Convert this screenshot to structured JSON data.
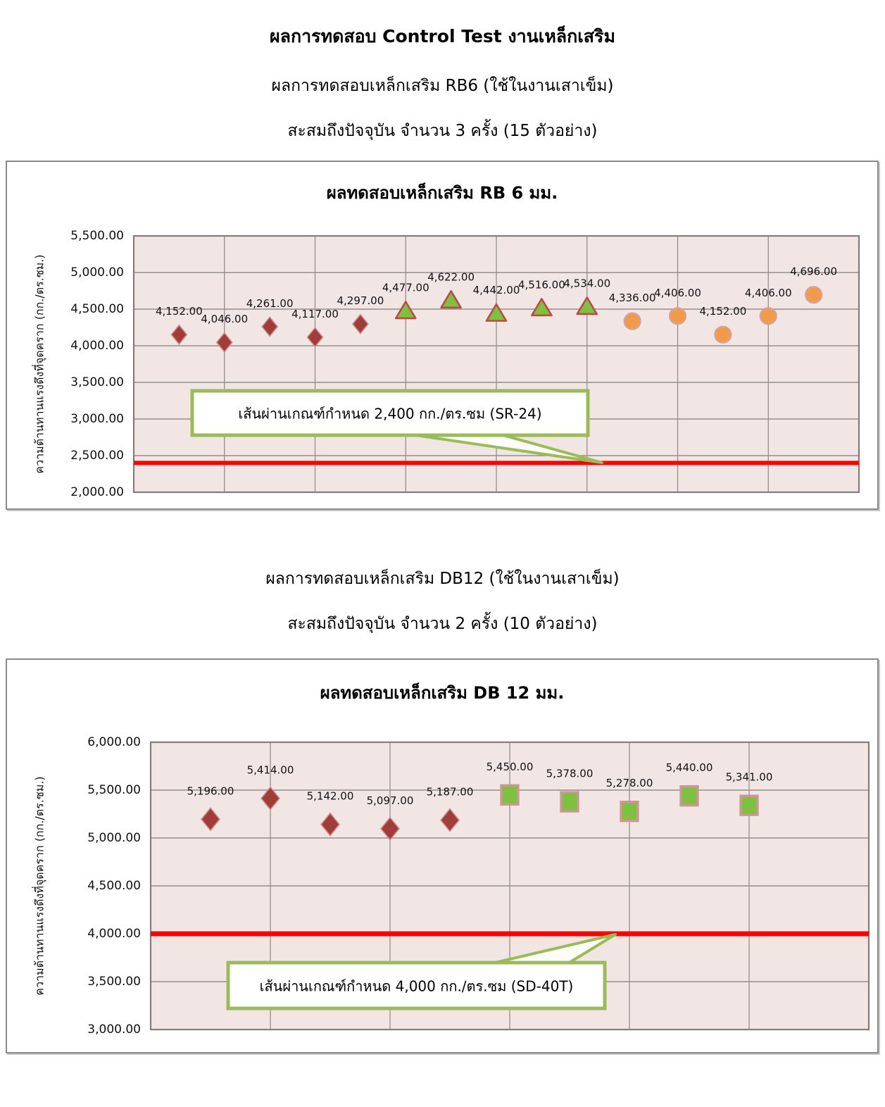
{
  "headers": {
    "main_title": "ผลการทดสอบ Control Test งานเหล็กเสริม",
    "rb6_subtitle": "ผลการทดสอบเหล็กเสริม RB6 (ใช้ในงานเสาเข็ม)",
    "rb6_summary": "สะสมถึงปัจจุบัน จำนวน 3 ครั้ง (15 ตัวอย่าง)",
    "db12_subtitle": "ผลการทดสอบเหล็กเสริม DB12 (ใช้ในงานเสาเข็ม)",
    "db12_summary": "สะสมถึงปัจจุบัน จำนวน 2 ครั้ง (10 ตัวอย่าง)"
  },
  "colors": {
    "plot_background": "#F2E6E5",
    "gridline": "#948D8D",
    "plot_border": "#827C7C",
    "threshold_line": "#FF0000",
    "callout_border": "#9BBB59",
    "callout_fill": "#FFFFFF",
    "diamond_fill": "#A23C39",
    "diamond_stroke": "#C9908D",
    "triangle_fill": "#7EC141",
    "triangle_stroke": "#BD4B45",
    "circle_fill": "#F19A4A",
    "circle_stroke": "#D6A29E",
    "square_fill": "#7EC141",
    "square_stroke": "#D09693"
  },
  "chart_data": [
    {
      "type": "scatter",
      "title": "ผลทดสอบเหล็กเสริม RB 6 มม.",
      "xlabel": "",
      "ylabel": "ความต้านทานแรงดึงที่จุดคราก  (กก./ตร.ซม.)",
      "ylim": [
        2000,
        5500
      ],
      "ytick_step": 500,
      "ytick_labels": [
        "5,500.00",
        "5,000.00",
        "4,500.00",
        "4,000.00",
        "3,500.00",
        "3,000.00",
        "2,500.00",
        "2,000.00"
      ],
      "grid": true,
      "legend": "none",
      "series": [
        {
          "marker": "diamond",
          "x": [
            1,
            2,
            3,
            4,
            5
          ],
          "values": [
            4152,
            4046,
            4261,
            4117,
            4297
          ],
          "labels": [
            "4,152.00",
            "4,046.00",
            "4,261.00",
            "4,117.00",
            "4,297.00"
          ]
        },
        {
          "marker": "triangle",
          "x": [
            6,
            7,
            8,
            9,
            10
          ],
          "values": [
            4477,
            4622,
            4442,
            4516,
            4534
          ],
          "labels": [
            "4,477.00",
            "4,622.00",
            "4,442.00",
            "4,516.00",
            "4,534.00"
          ]
        },
        {
          "marker": "circle",
          "x": [
            11,
            12,
            13,
            14,
            15
          ],
          "values": [
            4336,
            4406,
            4152,
            4406,
            4696
          ],
          "labels": [
            "4,336.00",
            "4,406.00",
            "4,152.00",
            "4,406.00",
            "4,696.00"
          ]
        }
      ],
      "threshold": {
        "value": 2400,
        "callout_label": "เส้นผ่านเกณฑ์กำหนด 2,400 กก./ตร.ซม (SR-24)"
      }
    },
    {
      "type": "scatter",
      "title": "ผลทดสอบเหล็กเสริม DB 12 มม.",
      "xlabel": "",
      "ylabel": "ความต้านทานแรงดึงที่จุดคราก  (กก./ตร.ซม.)",
      "ylim": [
        3000,
        6000
      ],
      "ytick_step": 500,
      "ytick_labels": [
        "6,000.00",
        "5,500.00",
        "5,000.00",
        "4,500.00",
        "4,000.00",
        "3,500.00",
        "3,000.00"
      ],
      "grid": true,
      "legend": "none",
      "series": [
        {
          "marker": "diamond",
          "x": [
            1,
            2,
            3,
            4,
            5
          ],
          "values": [
            5196,
            5414,
            5142,
            5097,
            5187
          ],
          "labels": [
            "5,196.00",
            "5,414.00",
            "5,142.00",
            "5,097.00",
            "5,187.00"
          ]
        },
        {
          "marker": "square",
          "x": [
            6,
            7,
            8,
            9,
            10
          ],
          "values": [
            5450,
            5378,
            5278,
            5440,
            5341
          ],
          "labels": [
            "5,450.00",
            "5,378.00",
            "5,278.00",
            "5,440.00",
            "5,341.00"
          ]
        }
      ],
      "threshold": {
        "value": 4000,
        "callout_label": "เส้นผ่านเกณฑ์กำหนด 4,000 กก./ตร.ซม (SD-40T)"
      }
    }
  ]
}
